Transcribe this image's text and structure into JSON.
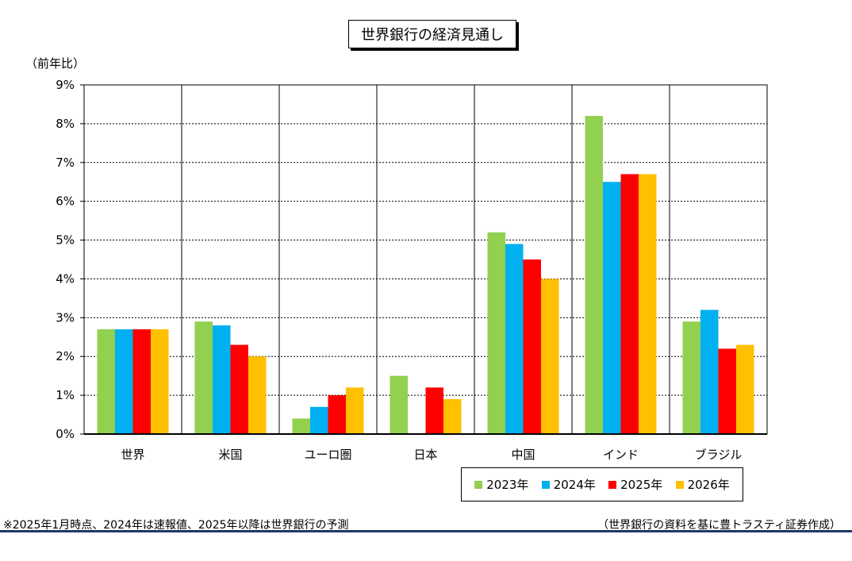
{
  "title": "世界銀行の経済見通し",
  "unit_label": "（前年比）",
  "note_left": "※2025年1月時点、2024年は速報値、2025年以降は世界銀行の予測",
  "note_right": "（世界銀行の資料を基に豊トラスティ証券作成）",
  "chart_data": {
    "type": "bar",
    "title": "世界銀行の経済見通し",
    "ylabel": "（前年比）",
    "xlabel": "",
    "ylim": [
      0,
      9
    ],
    "yticks": [
      "0%",
      "1%",
      "2%",
      "3%",
      "4%",
      "5%",
      "6%",
      "7%",
      "8%",
      "9%"
    ],
    "grid": true,
    "legend_position": "bottom-right",
    "categories": [
      "世界",
      "米国",
      "ユーロ圏",
      "日本",
      "中国",
      "インド",
      "ブラジル"
    ],
    "series": [
      {
        "name": "2023年",
        "color": "#92d050",
        "values": [
          2.7,
          2.9,
          0.4,
          1.5,
          5.2,
          8.2,
          2.9
        ]
      },
      {
        "name": "2024年",
        "color": "#00b0f0",
        "values": [
          2.7,
          2.8,
          0.7,
          0.0,
          4.9,
          6.5,
          3.2
        ]
      },
      {
        "name": "2025年",
        "color": "#ff0000",
        "values": [
          2.7,
          2.3,
          1.0,
          1.2,
          4.5,
          6.7,
          2.2
        ]
      },
      {
        "name": "2026年",
        "color": "#ffc000",
        "values": [
          2.7,
          2.0,
          1.2,
          0.9,
          4.0,
          6.7,
          2.3
        ]
      }
    ]
  }
}
